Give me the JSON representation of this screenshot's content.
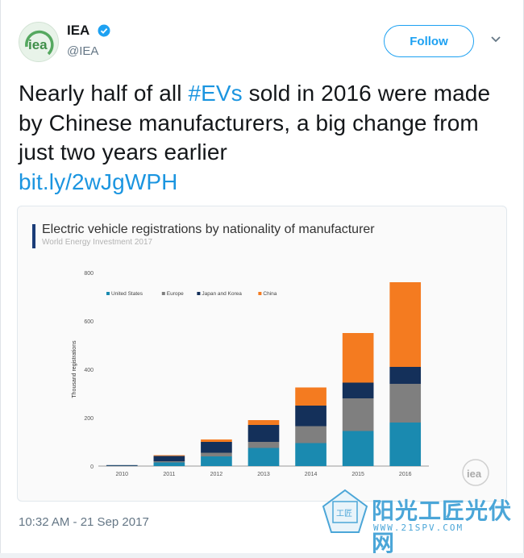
{
  "account": {
    "display_name": "IEA",
    "handle": "@IEA",
    "avatar_text": "iea"
  },
  "follow_label": "Follow",
  "tweet": {
    "text_part1": "Nearly half of all ",
    "hashtag": "#EVs",
    "text_part2": " sold in 2016 were made by Chinese manufacturers, a big change from just two years earlier",
    "link": "bit.ly/2wJgWPH"
  },
  "timestamp": "10:32 AM - 21 Sep 2017",
  "watermark": {
    "site_name": "阳光工匠光伏网",
    "url": "WWW.21SPV.COM",
    "badge_text": "工匠"
  },
  "colors": {
    "united_states": "#1a8ab0",
    "europe": "#7f7f7f",
    "japan_korea": "#14305a",
    "china": "#f47b20",
    "link_blue": "#1b95e0",
    "follow_blue": "#1da1f2"
  },
  "chart_data": {
    "type": "bar",
    "stacked": true,
    "title": "Electric vehicle registrations by nationality of manufacturer",
    "subtitle": "World Energy Investment 2017",
    "ylabel": "Thousand registrations",
    "xlabel": "",
    "ylim": [
      0,
      800
    ],
    "yticks": [
      0,
      200,
      400,
      600,
      800
    ],
    "categories": [
      "2010",
      "2011",
      "2012",
      "2013",
      "2014",
      "2015",
      "2016"
    ],
    "legend_position": "top-left",
    "grid": false,
    "series": [
      {
        "name": "United States",
        "color": "#1a8ab0",
        "values": [
          1,
          15,
          40,
          75,
          95,
          145,
          180
        ]
      },
      {
        "name": "Europe",
        "color": "#7f7f7f",
        "values": [
          0,
          5,
          15,
          25,
          70,
          135,
          160
        ]
      },
      {
        "name": "Japan and Korea",
        "color": "#14305a",
        "values": [
          3,
          22,
          45,
          70,
          85,
          65,
          70
        ]
      },
      {
        "name": "China",
        "color": "#f47b20",
        "values": [
          0,
          3,
          10,
          20,
          75,
          205,
          350
        ]
      }
    ],
    "logo_text": "iea"
  }
}
